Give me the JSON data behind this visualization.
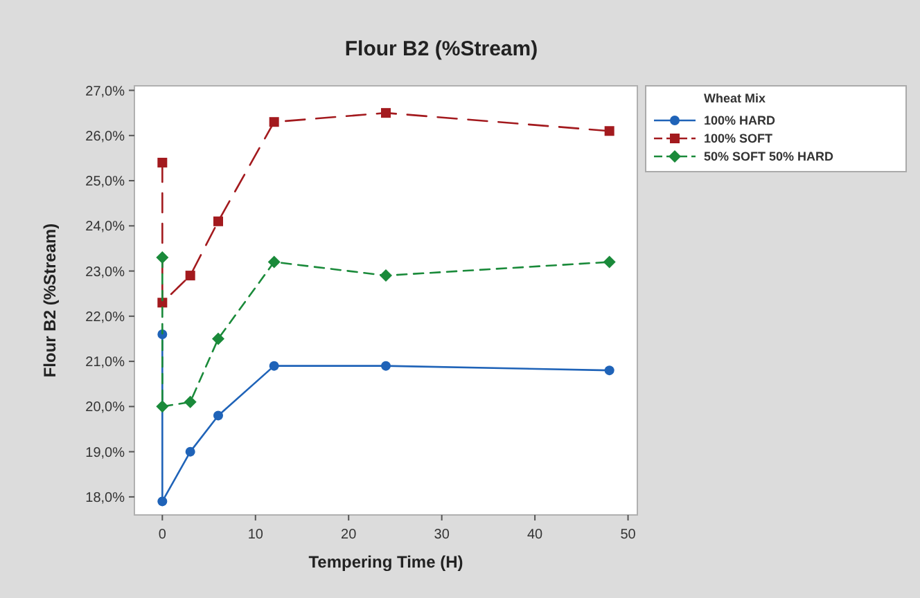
{
  "chart_data": {
    "type": "line",
    "title": "Flour B2 (%Stream)",
    "xlabel": "Tempering Time (H)",
    "ylabel": "Flour B2 (%Stream)",
    "legend_title": "Wheat Mix",
    "legend": "right",
    "grid": false,
    "x": [
      0,
      0,
      3,
      6,
      12,
      24,
      48
    ],
    "xlim": [
      -3,
      51
    ],
    "xticks": [
      0,
      10,
      20,
      30,
      40,
      50
    ],
    "ylim": [
      17.6,
      27.1
    ],
    "yticks": [
      {
        "value": 18,
        "label": "18,0%"
      },
      {
        "value": 19,
        "label": "19,0%"
      },
      {
        "value": 20,
        "label": "20,0%"
      },
      {
        "value": 21,
        "label": "21,0%"
      },
      {
        "value": 22,
        "label": "22,0%"
      },
      {
        "value": 23,
        "label": "23,0%"
      },
      {
        "value": 24,
        "label": "24,0%"
      },
      {
        "value": 25,
        "label": "25,0%"
      },
      {
        "value": 26,
        "label": "26,0%"
      },
      {
        "value": 27,
        "label": "27,0%"
      }
    ],
    "series": [
      {
        "name": "100% HARD",
        "color": "#1f63b8",
        "marker": "circle",
        "line_style": "solid",
        "values": [
          21.6,
          17.9,
          19.0,
          19.8,
          20.9,
          20.9,
          20.8
        ]
      },
      {
        "name": "100% SOFT",
        "color": "#a31a1e",
        "marker": "square",
        "line_style": "dashed",
        "values": [
          25.4,
          22.3,
          22.9,
          24.1,
          26.3,
          26.5,
          26.1
        ]
      },
      {
        "name": "50% SOFT 50% HARD",
        "color": "#1a8a3a",
        "marker": "diamond",
        "line_style": "dotted",
        "values": [
          23.3,
          20.0,
          20.1,
          21.5,
          23.2,
          22.9,
          23.2
        ]
      }
    ]
  }
}
